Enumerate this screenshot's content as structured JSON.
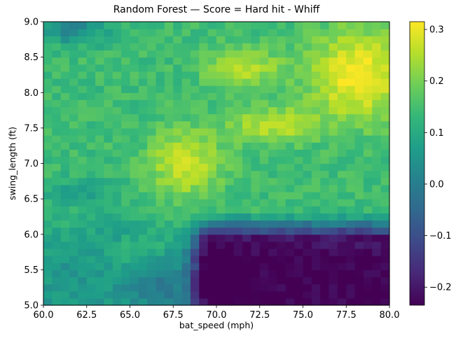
{
  "chart_data": {
    "type": "heatmap",
    "title": "Random Forest — Score = Hard hit - Whiff",
    "xlabel": "bat_speed (mph)",
    "ylabel": "swing_length (ft)",
    "xlim": [
      60.0,
      80.0
    ],
    "ylim": [
      5.0,
      9.0
    ],
    "x_ticks": [
      "60.0",
      "62.5",
      "65.0",
      "67.5",
      "70.0",
      "72.5",
      "75.0",
      "77.5",
      "80.0"
    ],
    "y_ticks": [
      "5.0",
      "5.5",
      "6.0",
      "6.5",
      "7.0",
      "7.5",
      "8.0",
      "8.5",
      "9.0"
    ],
    "colorbar": {
      "colormap": "viridis",
      "range": [
        -0.235,
        0.315
      ],
      "ticks": [
        "−0.2",
        "−0.1",
        "0.0",
        "0.1",
        "0.2",
        "0.3"
      ]
    },
    "grid_size": {
      "x_bins": 40,
      "y_bins": 40
    },
    "colors": {
      "viridis": [
        "#440154",
        "#482878",
        "#3e4989",
        "#31688e",
        "#26828e",
        "#1f9e89",
        "#35b779",
        "#6ece58",
        "#b5de2b",
        "#fde725"
      ]
    }
  }
}
